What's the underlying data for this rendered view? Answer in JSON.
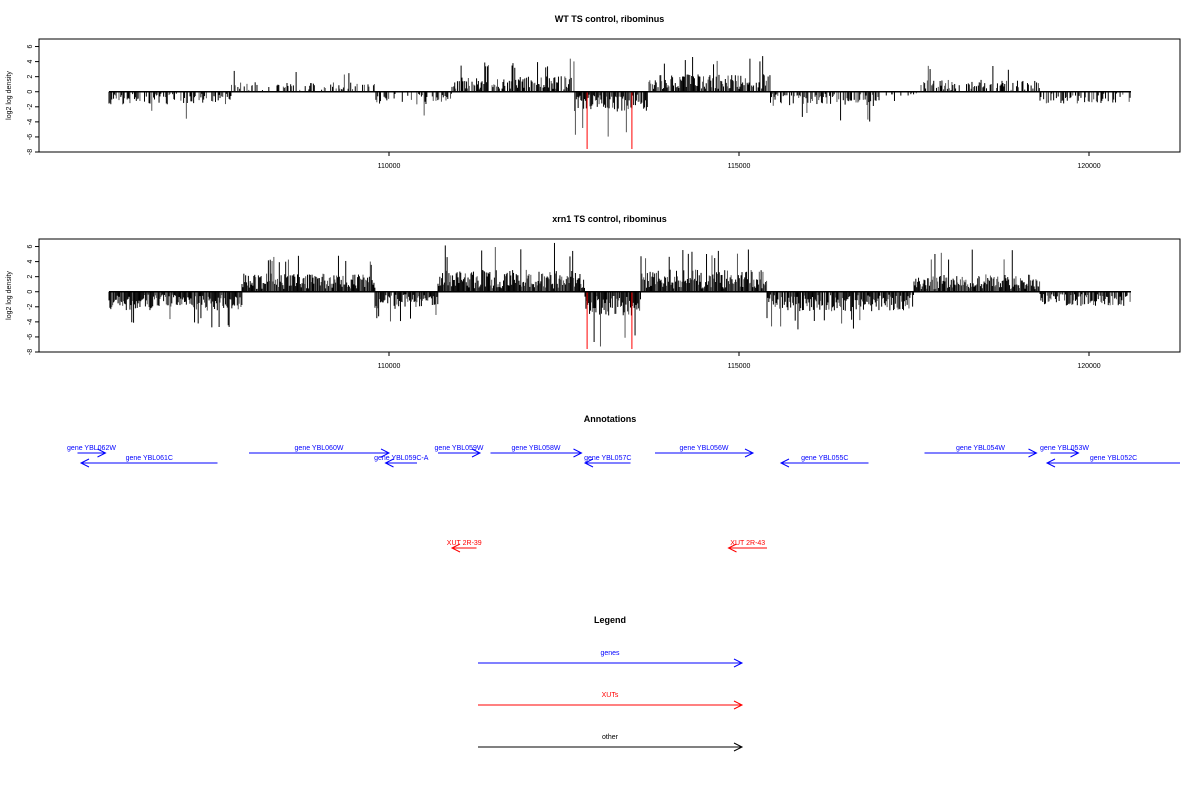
{
  "chart_data": [
    {
      "type": "bar",
      "title": "WT TS control, ribominus",
      "xlabel": "",
      "ylabel": "log2 log density",
      "xlim": [
        105000,
        121300
      ],
      "ylim": [
        -8,
        7
      ],
      "x_ticks": [
        110000,
        115000,
        120000
      ],
      "y_ticks": [
        -8,
        -6,
        -4,
        -2,
        0,
        2,
        4,
        6
      ],
      "data_start": 106000,
      "data_end": 120600,
      "regions": [
        {
          "from": 106000,
          "to": 107750,
          "sign": -1,
          "typical": 1.6,
          "max": 3.6,
          "density": 0.55
        },
        {
          "from": 107750,
          "to": 109800,
          "sign": 1,
          "typical": 1.2,
          "max": 3.0,
          "density": 0.35
        },
        {
          "from": 109800,
          "to": 110900,
          "sign": -1,
          "typical": 1.6,
          "max": 3.2,
          "density": 0.5
        },
        {
          "from": 110900,
          "to": 112650,
          "sign": 1,
          "typical": 2.0,
          "max": 4.5,
          "density": 0.75
        },
        {
          "from": 112650,
          "to": 113700,
          "sign": -1,
          "typical": 2.5,
          "max": 6.5,
          "density": 0.8
        },
        {
          "from": 113700,
          "to": 115450,
          "sign": 1,
          "typical": 2.2,
          "max": 4.8,
          "density": 0.85
        },
        {
          "from": 115450,
          "to": 117000,
          "sign": -1,
          "typical": 1.8,
          "max": 4.0,
          "density": 0.7
        },
        {
          "from": 117000,
          "to": 117600,
          "sign": -1,
          "typical": 0.5,
          "max": 1.5,
          "density": 0.25
        },
        {
          "from": 117600,
          "to": 119300,
          "sign": 1,
          "typical": 1.5,
          "max": 3.8,
          "density": 0.6
        },
        {
          "from": 119300,
          "to": 120600,
          "sign": -1,
          "typical": 1.5,
          "max": 4.2,
          "density": 0.55
        }
      ],
      "red_lines": [
        112830,
        113470
      ],
      "red_depth": -7.6,
      "seed": 7
    },
    {
      "type": "bar",
      "title": "xrn1 TS control, ribominus",
      "xlabel": "",
      "ylabel": "log2 log density",
      "xlim": [
        105000,
        121300
      ],
      "ylim": [
        -8,
        7
      ],
      "x_ticks": [
        110000,
        115000,
        120000
      ],
      "y_ticks": [
        -8,
        -6,
        -4,
        -2,
        0,
        2,
        4,
        6
      ],
      "data_start": 106000,
      "data_end": 120600,
      "regions": [
        {
          "from": 106000,
          "to": 107900,
          "sign": -1,
          "typical": 2.4,
          "max": 4.8,
          "density": 1.0
        },
        {
          "from": 107900,
          "to": 109800,
          "sign": 1,
          "typical": 2.3,
          "max": 4.8,
          "density": 1.0
        },
        {
          "from": 109800,
          "to": 110700,
          "sign": -1,
          "typical": 2.2,
          "max": 4.2,
          "density": 0.95
        },
        {
          "from": 110700,
          "to": 112800,
          "sign": 1,
          "typical": 2.8,
          "max": 6.5,
          "density": 1.0
        },
        {
          "from": 112800,
          "to": 113600,
          "sign": -1,
          "typical": 3.2,
          "max": 7.5,
          "density": 1.0
        },
        {
          "from": 113600,
          "to": 115400,
          "sign": 1,
          "typical": 2.8,
          "max": 5.8,
          "density": 1.0
        },
        {
          "from": 115400,
          "to": 117500,
          "sign": -1,
          "typical": 2.5,
          "max": 5.0,
          "density": 0.95
        },
        {
          "from": 117500,
          "to": 119300,
          "sign": 1,
          "typical": 2.2,
          "max": 5.8,
          "density": 1.0
        },
        {
          "from": 119300,
          "to": 120600,
          "sign": -1,
          "typical": 1.8,
          "max": 4.2,
          "density": 0.85
        }
      ],
      "red_lines": [
        112830,
        113470
      ],
      "red_depth": -7.6,
      "seed": 23
    }
  ],
  "annotations": {
    "title": "Annotations",
    "xlim": [
      105000,
      121300
    ],
    "genes": [
      {
        "label": "gene YBL062W",
        "from": 105550,
        "to": 105950,
        "strand": "+",
        "row": 0,
        "color": "#0000ff"
      },
      {
        "label": "gene YBL061C",
        "from": 105600,
        "to": 107550,
        "strand": "-",
        "row": 1,
        "color": "#0000ff"
      },
      {
        "label": "gene YBL060W",
        "from": 108000,
        "to": 110000,
        "strand": "+",
        "row": 0,
        "color": "#0000ff"
      },
      {
        "label": "gene YBL059C-A",
        "from": 109950,
        "to": 110400,
        "strand": "-",
        "row": 1,
        "color": "#0000ff"
      },
      {
        "label": "gene YBL059W",
        "from": 110700,
        "to": 111300,
        "strand": "+",
        "row": 0,
        "color": "#0000ff"
      },
      {
        "label": "gene YBL058W",
        "from": 111450,
        "to": 112750,
        "strand": "+",
        "row": 0,
        "color": "#0000ff"
      },
      {
        "label": "gene YBL057C",
        "from": 112800,
        "to": 113450,
        "strand": "-",
        "row": 1,
        "color": "#0000ff"
      },
      {
        "label": "gene YBL056W",
        "from": 113800,
        "to": 115200,
        "strand": "+",
        "row": 0,
        "color": "#0000ff"
      },
      {
        "label": "gene YBL055C",
        "from": 115600,
        "to": 116850,
        "strand": "-",
        "row": 1,
        "color": "#0000ff"
      },
      {
        "label": "gene YBL054W",
        "from": 117650,
        "to": 119250,
        "strand": "+",
        "row": 0,
        "color": "#0000ff"
      },
      {
        "label": "gene YBL053W",
        "from": 119450,
        "to": 119850,
        "strand": "+",
        "row": 0,
        "color": "#0000ff"
      },
      {
        "label": "gene YBL052C",
        "from": 119400,
        "to": 121300,
        "strand": "-",
        "row": 1,
        "color": "#0000ff"
      }
    ],
    "xuts": [
      {
        "label": "XUT 2R-39",
        "from": 110900,
        "to": 111250,
        "strand": "-",
        "color": "#ff0000"
      },
      {
        "label": "XUT 2R-43",
        "from": 114850,
        "to": 115400,
        "strand": "-",
        "color": "#ff0000"
      }
    ]
  },
  "legend": {
    "title": "Legend",
    "items": [
      {
        "label": "genes",
        "color": "#0000ff"
      },
      {
        "label": "XUTs",
        "color": "#ff0000"
      },
      {
        "label": "other",
        "color": "#000000"
      }
    ]
  }
}
